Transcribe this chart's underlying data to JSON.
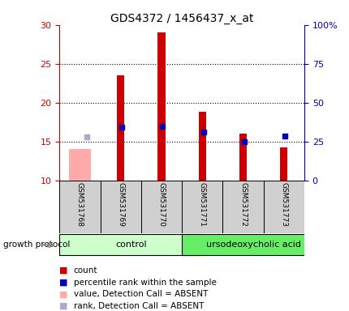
{
  "title": "GDS4372 / 1456437_x_at",
  "samples": [
    "GSM531768",
    "GSM531769",
    "GSM531770",
    "GSM531771",
    "GSM531772",
    "GSM531773"
  ],
  "ylim_left": [
    10,
    30
  ],
  "ylim_right": [
    0,
    100
  ],
  "yticks_left": [
    10,
    15,
    20,
    25,
    30
  ],
  "yticks_right": [
    0,
    25,
    50,
    75,
    100
  ],
  "bar_values": [
    null,
    23.5,
    29.0,
    18.8,
    16.0,
    14.2
  ],
  "bar_absent_values": [
    14.0,
    null,
    null,
    null,
    null,
    null
  ],
  "percentile_values": [
    null,
    16.8,
    17.0,
    16.2,
    15.0,
    15.7
  ],
  "percentile_absent_values": [
    15.6,
    null,
    null,
    null,
    null,
    null
  ],
  "bar_color": "#cc0000",
  "bar_absent_color": "#ffaaaa",
  "percentile_color": "#0000bb",
  "percentile_absent_color": "#aaaacc",
  "group_control_color": "#ccffcc",
  "group_urso_color": "#66ee66",
  "sample_box_color": "#d0d0d0",
  "left_axis_color": "#cc0000",
  "right_axis_color": "#0000bb",
  "legend_items": [
    {
      "label": "count",
      "color": "#cc0000"
    },
    {
      "label": "percentile rank within the sample",
      "color": "#0000bb"
    },
    {
      "label": "value, Detection Call = ABSENT",
      "color": "#ffaaaa"
    },
    {
      "label": "rank, Detection Call = ABSENT",
      "color": "#aaaacc"
    }
  ]
}
